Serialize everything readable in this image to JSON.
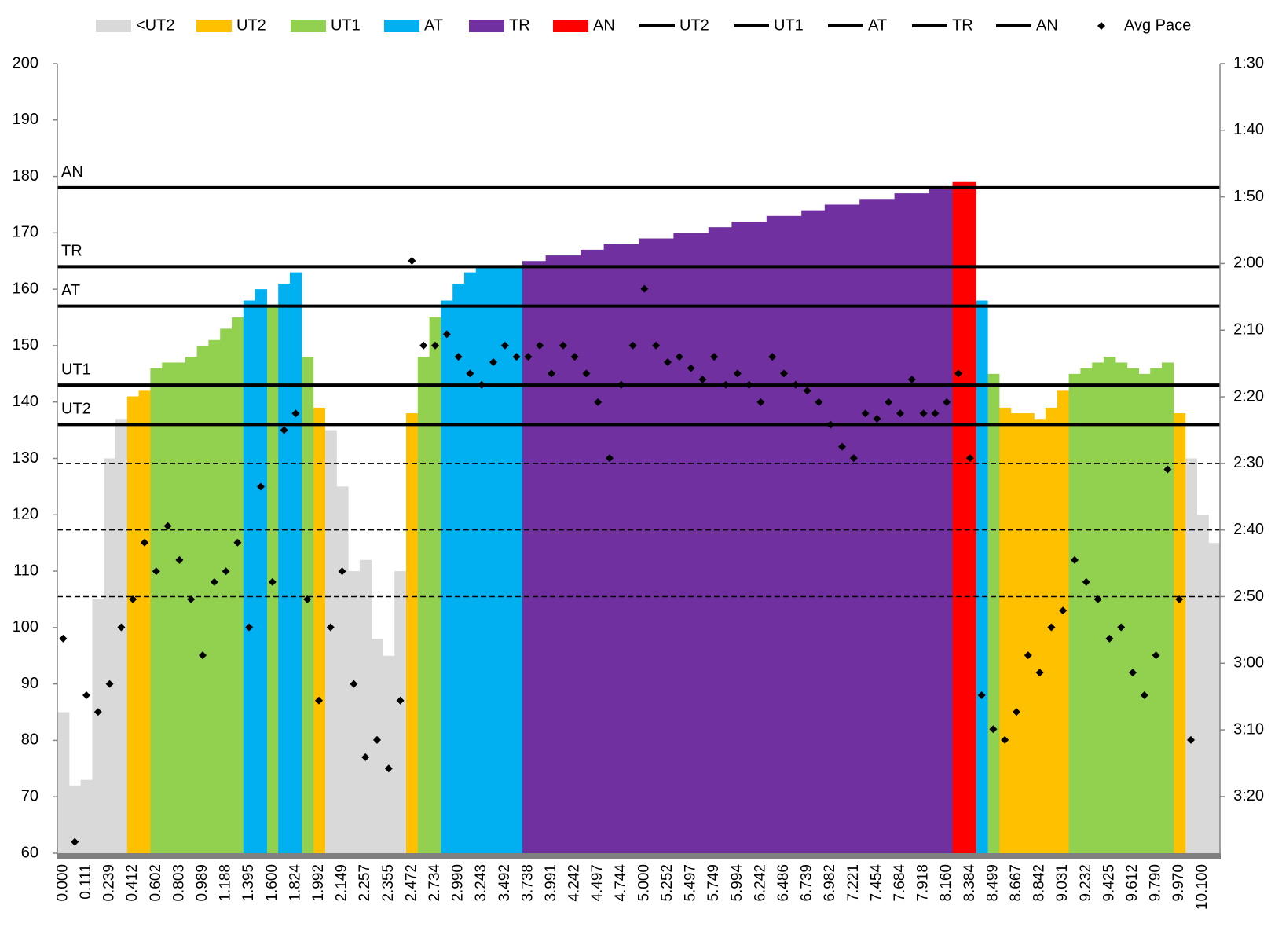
{
  "chart_data": {
    "type": "area",
    "categories": [
      "0.000",
      null,
      "0.111",
      null,
      "0.239",
      null,
      "0.412",
      null,
      "0.602",
      null,
      "0.803",
      null,
      "0.989",
      null,
      "1.188",
      null,
      "1.395",
      null,
      "1.600",
      null,
      "1.824",
      null,
      "1.992",
      null,
      "2.149",
      null,
      "2.257",
      null,
      "2.355",
      null,
      "2.472",
      null,
      "2.734",
      null,
      "2.990",
      null,
      "3.243",
      null,
      "3.492",
      null,
      "3.738",
      null,
      "3.991",
      null,
      "4.242",
      null,
      "4.497",
      null,
      "4.744",
      null,
      "5.000",
      null,
      "5.252",
      null,
      "5.497",
      null,
      "5.749",
      null,
      "5.994",
      null,
      "6.242",
      null,
      "6.486",
      null,
      "6.739",
      null,
      "6.982",
      null,
      "7.221",
      null,
      "7.454",
      null,
      "7.684",
      null,
      "7.918",
      null,
      "8.160",
      null,
      "8.384",
      null,
      "8.499",
      null,
      "8.667",
      null,
      "8.842",
      null,
      "9.031",
      null,
      "9.232",
      null,
      "9.425",
      null,
      "9.612",
      null,
      "9.790",
      null,
      "9.970",
      null,
      "10.100",
      null
    ],
    "ylim": [
      60,
      200
    ],
    "yticks": [
      60,
      70,
      80,
      90,
      100,
      110,
      120,
      130,
      140,
      150,
      160,
      170,
      180,
      190,
      200
    ],
    "y2lim": [
      208.5,
      90
    ],
    "y2ticks": [
      {
        "value": 90,
        "label": "1:30"
      },
      {
        "value": 100,
        "label": "1:40"
      },
      {
        "value": 110,
        "label": "1:50"
      },
      {
        "value": 120,
        "label": "2:00"
      },
      {
        "value": 130,
        "label": "2:10"
      },
      {
        "value": 140,
        "label": "2:20"
      },
      {
        "value": 150,
        "label": "2:30"
      },
      {
        "value": 160,
        "label": "2:40"
      },
      {
        "value": 170,
        "label": "2:50"
      },
      {
        "value": 180,
        "label": "3:00"
      },
      {
        "value": 190,
        "label": "3:10"
      },
      {
        "value": 200,
        "label": "3:20"
      }
    ],
    "y2_dashed_grid": [
      150,
      160,
      170
    ],
    "legend": "top",
    "series": [
      {
        "name": "<UT2",
        "type": "area",
        "color": "#d9d9d9",
        "values": [
          85,
          72,
          73,
          105,
          130,
          137,
          null,
          null,
          null,
          null,
          null,
          null,
          null,
          null,
          null,
          null,
          null,
          null,
          null,
          null,
          null,
          null,
          null,
          135,
          125,
          110,
          112,
          98,
          95,
          110,
          null,
          null,
          null,
          null,
          null,
          null,
          null,
          null,
          null,
          null,
          null,
          null,
          null,
          null,
          null,
          null,
          null,
          null,
          null,
          null,
          null,
          null,
          null,
          null,
          null,
          null,
          null,
          null,
          null,
          null,
          null,
          null,
          null,
          null,
          null,
          null,
          null,
          null,
          null,
          null,
          null,
          null,
          null,
          null,
          null,
          null,
          null,
          null,
          null,
          null,
          null,
          null,
          null,
          null,
          null,
          null,
          null,
          null,
          null,
          null,
          null,
          null,
          null,
          null,
          null,
          null,
          null,
          130,
          120,
          115
        ]
      },
      {
        "name": "UT2",
        "type": "area",
        "color": "#ffc000",
        "values": [
          null,
          null,
          null,
          null,
          null,
          null,
          141,
          142,
          null,
          null,
          null,
          null,
          null,
          null,
          null,
          null,
          null,
          null,
          null,
          null,
          null,
          null,
          139,
          null,
          null,
          null,
          null,
          null,
          null,
          null,
          138,
          null,
          null,
          null,
          null,
          null,
          null,
          null,
          null,
          null,
          null,
          null,
          null,
          null,
          null,
          null,
          null,
          null,
          null,
          null,
          null,
          null,
          null,
          null,
          null,
          null,
          null,
          null,
          null,
          null,
          null,
          null,
          null,
          null,
          null,
          null,
          null,
          null,
          null,
          null,
          null,
          null,
          null,
          null,
          null,
          null,
          null,
          null,
          null,
          null,
          null,
          139,
          138,
          138,
          137,
          139,
          142,
          null,
          null,
          null,
          null,
          null,
          null,
          null,
          null,
          null,
          138,
          null,
          null,
          null
        ]
      },
      {
        "name": "UT1",
        "type": "area",
        "color": "#92d050",
        "values": [
          null,
          null,
          null,
          null,
          null,
          null,
          null,
          null,
          146,
          147,
          147,
          148,
          150,
          151,
          153,
          155,
          null,
          null,
          157,
          null,
          null,
          148,
          null,
          null,
          null,
          null,
          null,
          null,
          null,
          null,
          null,
          148,
          155,
          null,
          null,
          null,
          null,
          null,
          null,
          null,
          null,
          null,
          null,
          null,
          null,
          null,
          null,
          null,
          null,
          null,
          null,
          null,
          null,
          null,
          null,
          null,
          null,
          null,
          null,
          null,
          null,
          null,
          null,
          null,
          null,
          null,
          null,
          null,
          null,
          null,
          null,
          null,
          null,
          null,
          null,
          null,
          null,
          null,
          null,
          null,
          145,
          null,
          null,
          null,
          null,
          null,
          null,
          145,
          146,
          147,
          148,
          147,
          146,
          145,
          146,
          147,
          null,
          null,
          null,
          null
        ]
      },
      {
        "name": "AT",
        "type": "area",
        "color": "#00b0f0",
        "values": [
          null,
          null,
          null,
          null,
          null,
          null,
          null,
          null,
          null,
          null,
          null,
          null,
          null,
          null,
          null,
          null,
          158,
          160,
          null,
          161,
          163,
          null,
          null,
          null,
          null,
          null,
          null,
          null,
          null,
          null,
          null,
          null,
          null,
          158,
          161,
          163,
          164,
          164,
          164,
          164,
          null,
          null,
          null,
          null,
          null,
          null,
          null,
          null,
          null,
          null,
          null,
          null,
          null,
          null,
          null,
          null,
          null,
          null,
          null,
          null,
          null,
          null,
          null,
          null,
          null,
          null,
          null,
          null,
          null,
          null,
          null,
          null,
          null,
          null,
          null,
          null,
          null,
          null,
          null,
          158,
          null,
          null,
          null,
          null,
          null,
          null,
          null,
          null,
          null,
          null,
          null,
          null,
          null,
          null,
          null,
          null,
          null,
          null,
          null,
          null
        ]
      },
      {
        "name": "TR",
        "type": "area",
        "color": "#7030a0",
        "values": [
          null,
          null,
          null,
          null,
          null,
          null,
          null,
          null,
          null,
          null,
          null,
          null,
          null,
          null,
          null,
          null,
          null,
          null,
          null,
          null,
          null,
          null,
          null,
          null,
          null,
          null,
          null,
          null,
          null,
          null,
          null,
          null,
          null,
          null,
          null,
          null,
          null,
          null,
          null,
          null,
          165,
          165,
          166,
          166,
          166,
          167,
          167,
          168,
          168,
          168,
          169,
          169,
          169,
          170,
          170,
          170,
          171,
          171,
          172,
          172,
          172,
          173,
          173,
          173,
          174,
          174,
          175,
          175,
          175,
          176,
          176,
          176,
          177,
          177,
          177,
          178,
          178,
          null,
          null,
          null,
          null,
          null,
          null,
          null,
          null,
          null,
          null,
          null,
          null,
          null,
          null,
          null,
          null,
          null,
          null,
          null,
          null,
          null,
          null,
          null
        ]
      },
      {
        "name": "AN",
        "type": "area",
        "color": "#ff0000",
        "values": [
          null,
          null,
          null,
          null,
          null,
          null,
          null,
          null,
          null,
          null,
          null,
          null,
          null,
          null,
          null,
          null,
          null,
          null,
          null,
          null,
          null,
          null,
          null,
          null,
          null,
          null,
          null,
          null,
          null,
          null,
          null,
          null,
          null,
          null,
          null,
          null,
          null,
          null,
          null,
          null,
          null,
          null,
          null,
          null,
          null,
          null,
          null,
          null,
          null,
          null,
          null,
          null,
          null,
          null,
          null,
          null,
          null,
          null,
          null,
          null,
          null,
          null,
          null,
          null,
          null,
          null,
          null,
          null,
          null,
          null,
          null,
          null,
          null,
          null,
          null,
          null,
          null,
          179,
          179,
          null,
          null,
          null,
          null,
          null,
          null,
          null,
          null,
          null,
          null,
          null,
          null,
          null,
          null,
          null,
          null,
          null,
          null,
          null,
          null,
          null
        ]
      },
      {
        "name": "UT2",
        "type": "hline",
        "color": "#000000",
        "value": 136
      },
      {
        "name": "UT1",
        "type": "hline",
        "color": "#000000",
        "value": 143
      },
      {
        "name": "AT",
        "type": "hline",
        "color": "#000000",
        "value": 157
      },
      {
        "name": "TR",
        "type": "hline",
        "color": "#000000",
        "value": 164
      },
      {
        "name": "AN",
        "type": "hline",
        "color": "#000000",
        "value": 178
      },
      {
        "name": "Avg Pace",
        "type": "scatter",
        "axis": "y2",
        "color": "#000000",
        "values": [
          176.3,
          206.8,
          184.8,
          187.3,
          183.1,
          174.6,
          170.4,
          161.9,
          166.2,
          159.4,
          164.5,
          170.4,
          178.8,
          167.8,
          166.2,
          161.9,
          174.6,
          153.5,
          167.8,
          145.0,
          142.5,
          170.4,
          185.6,
          174.6,
          166.2,
          183.1,
          194.1,
          191.5,
          195.8,
          185.6,
          119.6,
          132.3,
          132.3,
          130.6,
          134.0,
          136.5,
          138.2,
          134.8,
          132.3,
          134.0,
          134.0,
          132.3,
          136.5,
          132.3,
          134.0,
          136.5,
          140.8,
          149.2,
          138.2,
          132.3,
          123.8,
          132.3,
          134.8,
          134.0,
          135.7,
          137.4,
          134.0,
          138.2,
          136.5,
          138.2,
          140.8,
          134.0,
          136.5,
          138.2,
          139.1,
          140.8,
          144.2,
          147.5,
          149.2,
          142.5,
          143.3,
          140.8,
          142.5,
          137.4,
          142.5,
          142.5,
          140.8,
          136.5,
          149.2,
          184.8,
          189.9,
          191.5,
          187.3,
          178.8,
          181.4,
          174.6,
          172.1,
          164.5,
          167.8,
          170.4,
          176.3,
          174.6,
          181.4,
          184.8,
          178.8,
          150.9,
          170.4,
          191.5,
          null,
          null
        ]
      }
    ]
  }
}
